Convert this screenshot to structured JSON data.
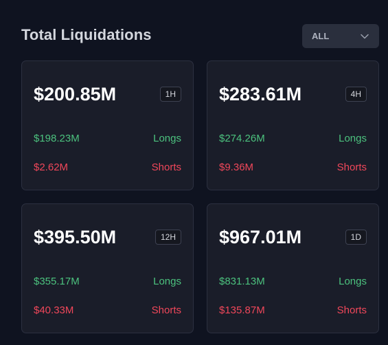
{
  "header": {
    "title": "Total Liquidations",
    "filter_value": "ALL"
  },
  "cards": [
    {
      "total": "$200.85M",
      "period": "1H",
      "longs_value": "$198.23M",
      "longs_label": "Longs",
      "shorts_value": "$2.62M",
      "shorts_label": "Shorts"
    },
    {
      "total": "$283.61M",
      "period": "4H",
      "longs_value": "$274.26M",
      "longs_label": "Longs",
      "shorts_value": "$9.36M",
      "shorts_label": "Shorts"
    },
    {
      "total": "$395.50M",
      "period": "12H",
      "longs_value": "$355.17M",
      "longs_label": "Longs",
      "shorts_value": "$40.33M",
      "shorts_label": "Shorts"
    },
    {
      "total": "$967.01M",
      "period": "1D",
      "longs_value": "$831.13M",
      "longs_label": "Longs",
      "shorts_value": "$135.87M",
      "shorts_label": "Shorts"
    }
  ],
  "colors": {
    "background": "#0f1320",
    "card": "#1a1d29",
    "longs": "#4cc27e",
    "shorts": "#f0475a"
  }
}
